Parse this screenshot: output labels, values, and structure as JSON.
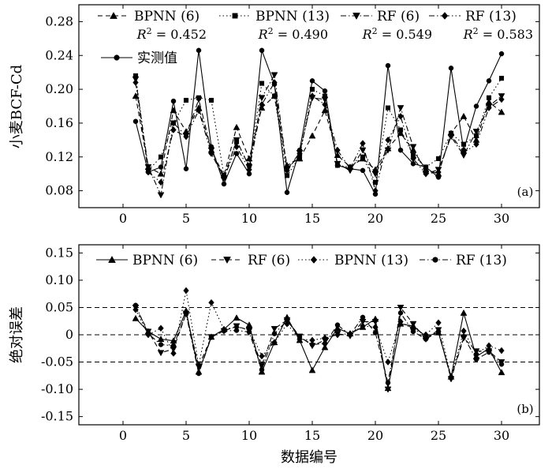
{
  "chart_data": [
    {
      "type": "line",
      "panel_label": "(a)",
      "ylabel": "小麦BCF-Cd",
      "xlim": [
        -3.5,
        33
      ],
      "ylim": [
        0.06,
        0.3
      ],
      "x_ticks": [
        0,
        5,
        10,
        15,
        20,
        25,
        30
      ],
      "y_ticks": [
        0.08,
        0.12,
        0.16,
        0.2,
        0.24,
        0.28
      ],
      "y_tick_labels": [
        "0.08",
        "0.12",
        "0.16",
        "0.20",
        "0.24",
        "0.28"
      ],
      "x": [
        1,
        2,
        3,
        4,
        5,
        6,
        7,
        8,
        9,
        10,
        11,
        12,
        13,
        14,
        15,
        16,
        17,
        18,
        19,
        20,
        21,
        22,
        23,
        24,
        25,
        26,
        27,
        28,
        29,
        30
      ],
      "series": [
        {
          "name": "BPNN (6)",
          "marker": "triangle-up",
          "dash": "dashed",
          "r2_label": "R² = 0.452",
          "values": [
            0.192,
            0.108,
            0.1,
            0.175,
            0.15,
            0.178,
            0.128,
            0.098,
            0.155,
            0.118,
            0.178,
            0.192,
            0.11,
            0.118,
            0.145,
            0.175,
            0.122,
            0.108,
            0.118,
            0.105,
            0.13,
            0.148,
            0.128,
            0.105,
            0.1,
            0.148,
            0.168,
            0.14,
            0.185,
            0.173
          ]
        },
        {
          "name": "BPNN (13)",
          "marker": "square",
          "dash": "dotted",
          "r2_label": "R² = 0.490",
          "values": [
            0.216,
            0.104,
            0.12,
            0.16,
            0.187,
            0.19,
            0.187,
            0.098,
            0.138,
            0.11,
            0.207,
            0.192,
            0.098,
            0.12,
            0.2,
            0.192,
            0.11,
            0.108,
            0.12,
            0.09,
            0.178,
            0.152,
            0.122,
            0.108,
            0.118,
            0.148,
            0.135,
            0.145,
            0.19,
            0.213
          ]
        },
        {
          "name": "RF (6)",
          "marker": "triangle-down",
          "dash": "dashdot",
          "r2_label": "R² = 0.549",
          "values": [
            0.212,
            0.108,
            0.075,
            0.16,
            0.145,
            0.188,
            0.128,
            0.095,
            0.14,
            0.108,
            0.19,
            0.217,
            0.105,
            0.125,
            0.19,
            0.188,
            0.112,
            0.104,
            0.128,
            0.1,
            0.128,
            0.178,
            0.132,
            0.1,
            0.105,
            0.144,
            0.122,
            0.15,
            0.18,
            0.192
          ]
        },
        {
          "name": "RF (13)",
          "marker": "diamond",
          "dash": "dashdotdot",
          "r2_label": "R² = 0.583",
          "values": [
            0.208,
            0.102,
            0.09,
            0.152,
            0.144,
            0.175,
            0.124,
            0.095,
            0.132,
            0.105,
            0.182,
            0.208,
            0.104,
            0.124,
            0.192,
            0.182,
            0.128,
            0.106,
            0.136,
            0.08,
            0.14,
            0.168,
            0.118,
            0.1,
            0.102,
            0.146,
            0.125,
            0.135,
            0.178,
            0.188
          ]
        },
        {
          "name": "实测值",
          "marker": "circle",
          "dash": "solid",
          "r2_label": "",
          "values": [
            0.162,
            0.102,
            0.108,
            0.186,
            0.106,
            0.246,
            0.132,
            0.088,
            0.124,
            0.1,
            0.246,
            0.206,
            0.078,
            0.128,
            0.21,
            0.198,
            0.11,
            0.106,
            0.104,
            0.076,
            0.228,
            0.128,
            0.112,
            0.108,
            0.096,
            0.225,
            0.128,
            0.18,
            0.21,
            0.242
          ]
        }
      ]
    },
    {
      "type": "line",
      "panel_label": "(b)",
      "ylabel": "绝对误差",
      "xlabel": "数据编号",
      "xlim": [
        -3.5,
        33
      ],
      "ylim": [
        -0.165,
        0.165
      ],
      "x_ticks": [
        0,
        5,
        10,
        15,
        20,
        25,
        30
      ],
      "y_ticks": [
        -0.15,
        -0.1,
        -0.05,
        0,
        0.05,
        0.1,
        0.15
      ],
      "y_tick_labels": [
        "-0.15",
        "-0.10",
        "-0.05",
        "0",
        "0.05",
        "0.10",
        "0.15"
      ],
      "reference_lines": [
        -0.05,
        0,
        0.05
      ],
      "x": [
        1,
        2,
        3,
        4,
        5,
        6,
        7,
        8,
        9,
        10,
        11,
        12,
        13,
        14,
        15,
        16,
        17,
        18,
        19,
        20,
        21,
        22,
        23,
        24,
        25,
        26,
        27,
        28,
        29,
        30
      ],
      "series": [
        {
          "name": "BPNN (6)",
          "marker": "triangle-up",
          "dash": "solid",
          "values": [
            0.03,
            0.006,
            -0.008,
            -0.011,
            0.044,
            -0.068,
            -0.004,
            0.01,
            0.031,
            0.018,
            -0.068,
            -0.014,
            0.032,
            -0.01,
            -0.065,
            -0.023,
            0.012,
            0.002,
            0.014,
            0.029,
            -0.098,
            0.02,
            0.016,
            -0.003,
            0.004,
            -0.077,
            0.04,
            -0.04,
            -0.025,
            -0.069
          ]
        },
        {
          "name": "RF (6)",
          "marker": "triangle-down",
          "dash": "dashed",
          "values": [
            0.05,
            0.006,
            -0.033,
            -0.026,
            0.039,
            -0.058,
            -0.004,
            0.007,
            0.016,
            0.008,
            -0.056,
            0.011,
            0.027,
            -0.003,
            -0.02,
            -0.01,
            0.002,
            -0.002,
            0.024,
            0.024,
            -0.1,
            0.05,
            0.02,
            -0.008,
            0.009,
            -0.081,
            -0.006,
            -0.03,
            -0.03,
            -0.05
          ]
        },
        {
          "name": "BPNN (13)",
          "marker": "diamond",
          "dash": "dotted",
          "values": [
            0.046,
            0.0,
            0.012,
            -0.034,
            0.081,
            -0.056,
            0.059,
            0.01,
            0.014,
            0.01,
            -0.039,
            -0.014,
            0.02,
            -0.008,
            -0.01,
            -0.006,
            0.0,
            0.002,
            0.016,
            0.014,
            -0.05,
            0.024,
            0.01,
            0.0,
            0.022,
            -0.077,
            0.007,
            -0.035,
            -0.02,
            -0.029
          ]
        },
        {
          "name": "RF (13)",
          "marker": "circle",
          "dash": "dashdot",
          "values": [
            0.054,
            0.002,
            -0.018,
            -0.02,
            0.038,
            -0.071,
            -0.004,
            0.007,
            0.008,
            0.005,
            -0.064,
            0.002,
            0.026,
            -0.004,
            -0.018,
            -0.016,
            0.018,
            0.0,
            0.032,
            0.004,
            -0.088,
            0.04,
            0.006,
            -0.008,
            0.006,
            -0.079,
            -0.003,
            -0.045,
            -0.032,
            -0.054
          ]
        }
      ]
    }
  ]
}
